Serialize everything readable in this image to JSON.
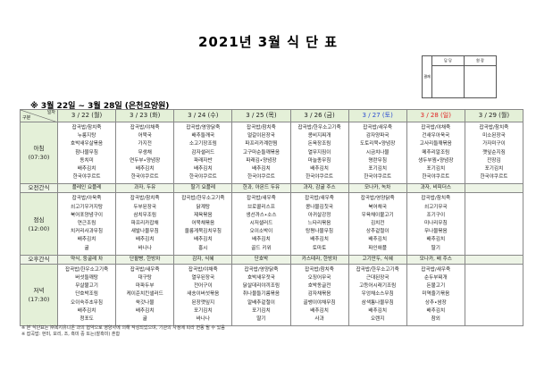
{
  "title": "2021년 3월 식 단 표",
  "approval": {
    "side": "결재",
    "cols": [
      "담 당",
      "원 장"
    ]
  },
  "subtitle": "※ 3월 22일 ~ 3월 28일 (은천요양원)",
  "corner": {
    "top": "일자",
    "bottom": "구분"
  },
  "colors": {
    "header_bg": "#e4f0d8",
    "saturday": "#2a4bd0",
    "sunday": "#e02020"
  },
  "days": [
    {
      "label": "3 / 22 (월)",
      "color": ""
    },
    {
      "label": "3 / 23 (화)",
      "color": ""
    },
    {
      "label": "3 / 24 (수)",
      "color": ""
    },
    {
      "label": "3 / 25 (목)",
      "color": ""
    },
    {
      "label": "3 / 26 (금)",
      "color": ""
    },
    {
      "label": "3 / 27 (토)",
      "color": "#2a4bd0"
    },
    {
      "label": "3 / 28 (일)",
      "color": "#e02020"
    },
    {
      "label": "3 / 29 (월)",
      "color": ""
    }
  ],
  "rows": [
    {
      "label": "아침\n(07:30)",
      "type": "meal",
      "cells": [
        [
          "잡곡밥/참치죽",
          "누룽지탕",
          "호박새우살볶음",
          "참나물무침",
          "동치미",
          "배추김치",
          "한국야쿠르트"
        ],
        [
          "잡곡밥/야채죽",
          "어묵국",
          "가지전",
          "무생채",
          "연두부•양념장",
          "배추김치",
          "한국야쿠르트"
        ],
        [
          "잡곡밥/영양닭죽",
          "배추들깨국",
          "소고기장조림",
          "감자샐러드",
          "파래자반",
          "배추김치",
          "한국야쿠르트"
        ],
        [
          "잡곡밥/참치죽",
          "얼갈이된장국",
          "파프리카계란찜",
          "고구마순들깨볶음",
          "파래김•양념장",
          "배추김치",
          "한국야쿠르트"
        ],
        [
          "잡곡밥/한우소고기죽",
          "콩비지찌개",
          "돈육장조림",
          "열무지짐이",
          "마늘종무침",
          "배추김치",
          "한국야쿠르트"
        ],
        [
          "잡곡밥/새우죽",
          "감자양파국",
          "도토리묵•양념장",
          "시금치나물",
          "명란무침",
          "포기김치",
          "한국야쿠르트"
        ],
        [
          "잡곡밥/야채죽",
          "건새우아욱국",
          "고사리들깨볶음",
          "메추리알조림",
          "생두부찜•양념장",
          "포기김치",
          "한국야쿠르트"
        ],
        [
          "잡곡밥/참치죽",
          "미소된장국",
          "가자미구이",
          "깻잎순지짐",
          "잔장김",
          "포기김치",
          "한국야쿠르트"
        ]
      ]
    },
    {
      "label": "오전간식",
      "type": "snack",
      "cells": [
        "플레인 요플레",
        "과자, 두유",
        "딸기 요플레",
        "한과, 아몬드 두유",
        "과자, 감귤 주스",
        "모나카, 녹차",
        "과자, 비피더스",
        ""
      ]
    },
    {
      "label": "점심\n(12:00)",
      "type": "meal",
      "cells": [
        [
          "잡곡밥/아욱죽",
          "쇠고기우거지탕",
          "북어포양념구이",
          "연근조림",
          "치커리사과무침",
          "배추김치",
          "귤"
        ],
        [
          "잡곡밥/참치죽",
          "두부된장국",
          "삼치무조림",
          "파프리카잡채",
          "새발나물무침",
          "배추김치",
          "바나나"
        ],
        [
          "잡곡밥/한우소고기죽",
          "닭계탕",
          "제육볶음",
          "어묵채볶음",
          "울릉게묵김치무침",
          "배추김치",
          "홍시"
        ],
        [
          "잡곡밥/새우죽",
          "브로콜리스프",
          "생선까스•소스",
          "시저샐러드",
          "오이소박이",
          "배추김치",
          "골드 키위"
        ],
        [
          "잡곡밥/새우죽",
          "콩나물김칫국",
          "아귀살강정",
          "느타리볶음",
          "탕평나물무침",
          "배추김치",
          "토마토"
        ],
        [
          "잡곡밥/영양닭죽",
          "북어채국",
          "우육채이불고기",
          "김치전",
          "상추겉절이",
          "배추김치",
          "파인애플"
        ],
        [
          "잡곡밥/참치죽",
          "쇠고기무국",
          "조기구이",
          "미나리무침",
          "무나물볶음",
          "배추김치",
          "딸기"
        ],
        []
      ]
    },
    {
      "label": "오후간식",
      "type": "snack",
      "cells": [
        "약식, 둥굴레 차",
        "단팥빵, 한방차",
        "감자, 식혜",
        "단호박",
        "카스테라, 한방차",
        "고기만두, 식혜",
        "모나카, 배 주스",
        ""
      ]
    },
    {
      "label": "저녁\n(17:30)",
      "type": "meal",
      "cells": [
        [
          "잡곡밥/한우소고기죽",
          "버섯들깨탕",
          "무살불고기",
          "단호박조림",
          "오이숙주초무침",
          "배추김치",
          "청포도"
        ],
        [
          "잡곡밥/새우죽",
          "대구탕",
          "마파두부",
          "케이준치킨샐러드",
          "쑥갓나물",
          "배추김치",
          "귤"
        ],
        [
          "잡곡밥/야채죽",
          "열무된장국",
          "전어구이",
          "새송이버섯볶음",
          "된장깻잎지",
          "포기김치",
          "바나나"
        ],
        [
          "잡곡밥/영양닭죽",
          "호박새우젓국",
          "닭살데리야끼조림",
          "취나물들기름볶음",
          "알배추겉절이",
          "포기김치",
          "딸기"
        ],
        [
          "잡곡밥/참치죽",
          "오징어무국",
          "호박동글전",
          "감자채볶음",
          "골뱅이야채무침",
          "배추김치",
          "사과"
        ],
        [
          "잡곡밥/한우소고기죽",
          "근대된장국",
          "고등어시래기조림",
          "우엉채소스무침",
          "삼색통나물무침",
          "배추김치",
          "오렌지"
        ],
        [
          "잡곡밥/새우죽",
          "순두부찌개",
          "돈불고기",
          "미역줄기볶음",
          "상추•쌈장",
          "배추김치",
          "참외"
        ],
        []
      ]
    }
  ],
  "footnotes": [
    "※ 본 식단표는 ㈜복지유니온 과의 협약으로 영양사에 의해 작성되었으며, 기관의 사정에 따라 변동 될 수 있음",
    "※ 잡곡밥: 현미, 보리, 조, 흑미 중 또는(찰흑미) 혼합"
  ]
}
